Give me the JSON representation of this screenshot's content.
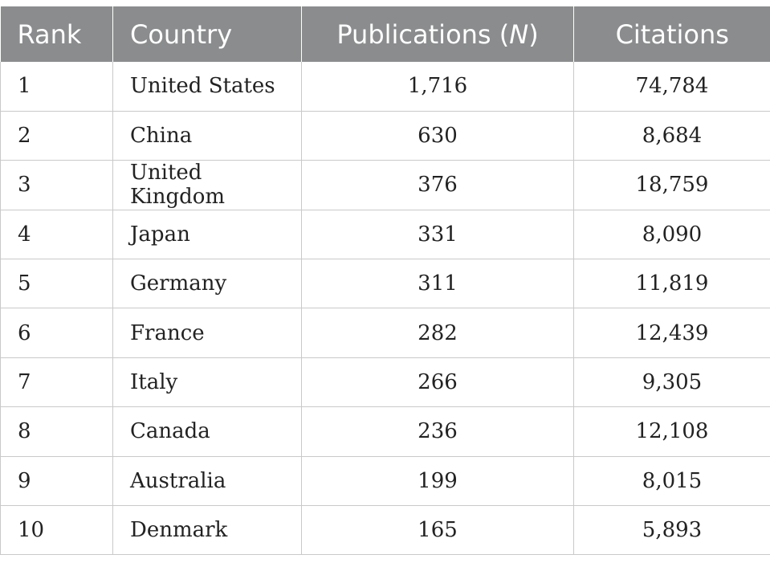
{
  "table": {
    "headers": {
      "rank": "Rank",
      "country": "Country",
      "publications_prefix": "Publications (",
      "publications_n": "N",
      "publications_suffix": ")",
      "citations": "Citations"
    },
    "rows": [
      {
        "rank": "1",
        "country": "United States",
        "publications": "1,716",
        "citations": "74,784"
      },
      {
        "rank": "2",
        "country": "China",
        "publications": "630",
        "citations": "8,684"
      },
      {
        "rank": "3",
        "country": "United Kingdom",
        "publications": "376",
        "citations": "18,759"
      },
      {
        "rank": "4",
        "country": "Japan",
        "publications": "331",
        "citations": "8,090"
      },
      {
        "rank": "5",
        "country": "Germany",
        "publications": "311",
        "citations": "11,819"
      },
      {
        "rank": "6",
        "country": "France",
        "publications": "282",
        "citations": "12,439"
      },
      {
        "rank": "7",
        "country": "Italy",
        "publications": "266",
        "citations": "9,305"
      },
      {
        "rank": "8",
        "country": "Canada",
        "publications": "236",
        "citations": "12,108"
      },
      {
        "rank": "9",
        "country": "Australia",
        "publications": "199",
        "citations": "8,015"
      },
      {
        "rank": "10",
        "country": "Denmark",
        "publications": "165",
        "citations": "5,893"
      }
    ]
  }
}
